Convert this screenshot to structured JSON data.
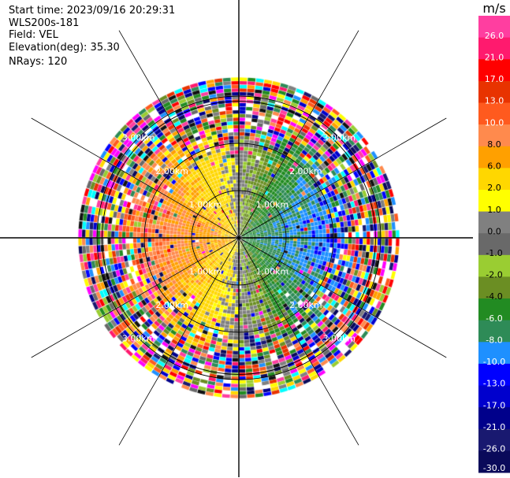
{
  "header": {
    "start_time": "Start time: 2023/09/16 20:29:31",
    "instrument": "WLS200s-181",
    "field": "Field: VEL",
    "elevation": "Elevation(deg): 35.30",
    "nrays": "NRays: 120"
  },
  "chart_data": {
    "type": "heatmap",
    "projection": "polar-ppi",
    "field": "VEL",
    "nrays": 120,
    "range_rings_km": [
      1,
      2,
      3
    ],
    "ring_labels": [
      "1.00km",
      "2.00km",
      "3.00km"
    ],
    "max_range_km": 3.4,
    "colorbar": {
      "unit": "m/s",
      "ticks": [
        "26.0",
        "21.0",
        "17.0",
        "13.0",
        "10.0",
        "8.0",
        "6.0",
        "2.0",
        "1.0",
        "0.0",
        "-1.0",
        "-2.0",
        "-4.0",
        "-6.0",
        "-8.0",
        "-10.0",
        "-13.0",
        "-17.0",
        "-21.0",
        "-26.0",
        "-30.0"
      ],
      "colors": [
        "#ff3ea0",
        "#ff1a6e",
        "#ff0000",
        "#e83300",
        "#ff5a1e",
        "#ff8a4d",
        "#ffa000",
        "#ffd700",
        "#ffff00",
        "#808080",
        "#696969",
        "#9acd32",
        "#6b8e23",
        "#228b22",
        "#2e8b57",
        "#1e90ff",
        "#0000ff",
        "#0000cd",
        "#00008b",
        "#191970",
        "#0a0a5a"
      ]
    }
  }
}
